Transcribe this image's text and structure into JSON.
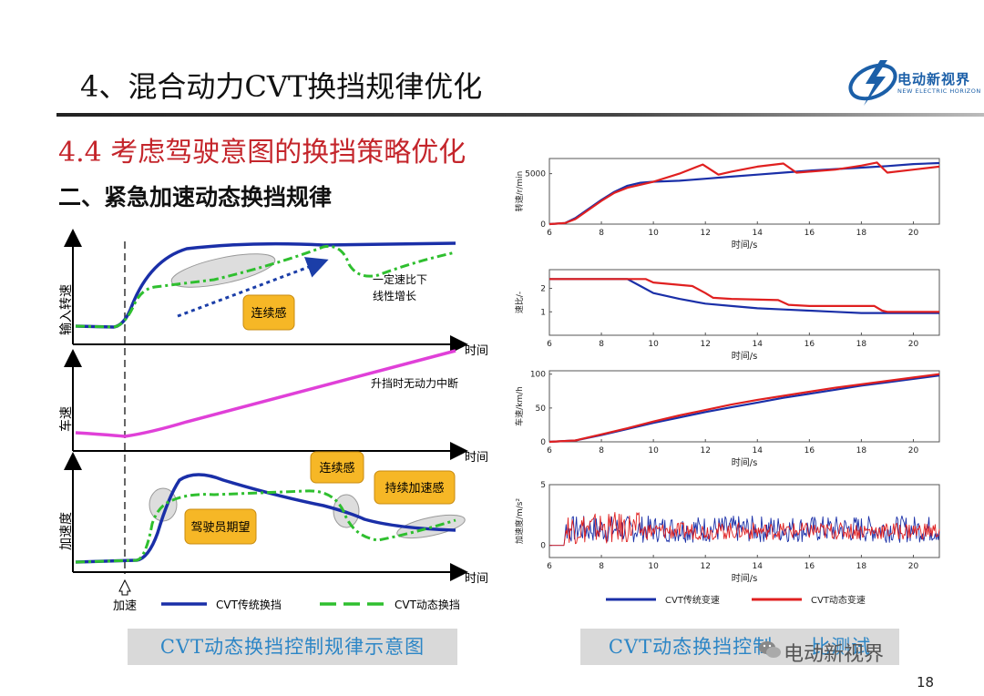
{
  "slide": {
    "title": "4、混合动力CVT换挡规律优化",
    "section": "4.4 考虑驾驶意图的换挡策略优化",
    "subsection": "二、紧急加速动态换挡规律",
    "page_number": "18",
    "logo": {
      "name": "电动新视界",
      "sub": "NEW ELECTRIC HORIZON",
      "color": "#1b5fa8"
    },
    "watermark": "电动新视界",
    "colors": {
      "title_red": "#c4252b",
      "caption_blue": "#2d86c6",
      "traditional": "#1a2fa8",
      "dynamic": "#2fbf2f",
      "speed": "#e040d8"
    }
  },
  "schematic": {
    "caption": "CVT动态换挡控制规律示意图",
    "panel1": {
      "ylabel": "输入转速",
      "xlabel": "时间",
      "annotation": "一定速比下\n线性增长",
      "badge": "连续感"
    },
    "panel2": {
      "ylabel": "车速",
      "xlabel": "时间",
      "annotation": "升挡时无动力中断"
    },
    "panel3": {
      "ylabel": "加速度",
      "xlabel": "时间",
      "badge_driver": "驾驶员期望",
      "badge_cont": "连续感",
      "badge_sustain": "持续加速感"
    },
    "marker": "加速",
    "legend": [
      {
        "name": "CVT传统换挡",
        "style": "solid"
      },
      {
        "name": "CVT动态换挡",
        "style": "dashed"
      }
    ]
  },
  "chart_data": [
    {
      "type": "line",
      "ylabel": "转速/r/min",
      "xlabel": "时间/s",
      "x_ticks": [
        6,
        8,
        10,
        12,
        14,
        16,
        18,
        20
      ],
      "y_ticks": [
        0,
        5000
      ],
      "xlim": [
        6,
        21
      ],
      "ylim": [
        0,
        6500
      ],
      "series": [
        {
          "name": "CVT传统变速",
          "color": "#1a2fa8",
          "x": [
            6,
            6.6,
            7,
            7.5,
            8,
            8.5,
            9,
            9.5,
            10,
            11,
            12,
            13,
            14,
            15,
            16,
            17,
            18,
            19,
            20,
            21
          ],
          "y": [
            0,
            100,
            600,
            1500,
            2400,
            3200,
            3800,
            4100,
            4200,
            4300,
            4500,
            4700,
            4900,
            5100,
            5300,
            5450,
            5600,
            5750,
            5950,
            6050
          ]
        },
        {
          "name": "CVT动态变速",
          "color": "#e02020",
          "x": [
            6,
            6.6,
            7,
            7.5,
            8,
            8.5,
            9,
            9.5,
            10,
            11,
            11.9,
            12.5,
            13,
            14,
            15,
            15.5,
            16,
            17,
            18,
            18.6,
            19,
            20,
            21
          ],
          "y": [
            0,
            100,
            500,
            1400,
            2300,
            3100,
            3600,
            3900,
            4200,
            5000,
            5900,
            4900,
            5200,
            5700,
            6000,
            5100,
            5200,
            5400,
            5800,
            6100,
            5100,
            5400,
            5700
          ]
        }
      ]
    },
    {
      "type": "line",
      "ylabel": "速比/-",
      "xlabel": "时间/s",
      "x_ticks": [
        6,
        8,
        10,
        12,
        14,
        16,
        18,
        20
      ],
      "y_ticks": [
        1,
        2
      ],
      "xlim": [
        6,
        21
      ],
      "ylim": [
        0,
        2.8
      ],
      "series": [
        {
          "name": "CVT传统变速",
          "color": "#1a2fa8",
          "x": [
            6,
            9,
            9.5,
            10,
            11,
            12,
            13,
            14,
            15,
            16,
            17,
            18,
            19,
            20,
            21
          ],
          "y": [
            2.4,
            2.4,
            2.1,
            1.8,
            1.55,
            1.35,
            1.25,
            1.15,
            1.1,
            1.05,
            1.0,
            0.95,
            0.95,
            0.95,
            0.95
          ]
        },
        {
          "name": "CVT动态变速",
          "color": "#e02020",
          "x": [
            6,
            9.7,
            10,
            11.5,
            12,
            12.3,
            13,
            14.8,
            15.2,
            16,
            18.5,
            18.8,
            19,
            20,
            21
          ],
          "y": [
            2.4,
            2.4,
            2.25,
            2.1,
            1.8,
            1.6,
            1.55,
            1.5,
            1.3,
            1.25,
            1.25,
            1.05,
            1.0,
            1.0,
            1.0
          ]
        }
      ]
    },
    {
      "type": "line",
      "ylabel": "车速/km/h",
      "xlabel": "时间/s",
      "x_ticks": [
        6,
        8,
        10,
        12,
        14,
        16,
        18,
        20
      ],
      "y_ticks": [
        0,
        50,
        100
      ],
      "xlim": [
        6,
        21
      ],
      "ylim": [
        0,
        105
      ],
      "series": [
        {
          "name": "CVT传统变速",
          "color": "#1a2fa8",
          "x": [
            6,
            7,
            8,
            9,
            10,
            11,
            12,
            13,
            14,
            15,
            16,
            17,
            18,
            19,
            20,
            21
          ],
          "y": [
            0,
            2,
            10,
            19,
            28,
            36,
            44,
            51,
            58,
            65,
            71,
            77,
            83,
            88,
            93,
            98
          ]
        },
        {
          "name": "CVT动态变速",
          "color": "#e02020",
          "x": [
            6,
            7,
            8,
            9,
            10,
            11,
            12,
            13,
            14,
            15,
            16,
            17,
            18,
            19,
            20,
            21
          ],
          "y": [
            0,
            2,
            11,
            20,
            30,
            39,
            47,
            55,
            62,
            68,
            74,
            80,
            85,
            90,
            95,
            100
          ]
        }
      ]
    },
    {
      "type": "line",
      "ylabel": "加速度/m/s²",
      "xlabel": "时间/s",
      "x_ticks": [
        6,
        8,
        10,
        12,
        14,
        16,
        18,
        20
      ],
      "y_ticks": [
        0,
        5
      ],
      "xlim": [
        6,
        21
      ],
      "ylim": [
        -1,
        5
      ],
      "series": [
        {
          "name": "CVT传统变速",
          "color": "#1a2fa8",
          "x": [],
          "y": []
        },
        {
          "name": "CVT动态变速",
          "color": "#e02020",
          "x": [],
          "y": []
        }
      ]
    }
  ]
}
